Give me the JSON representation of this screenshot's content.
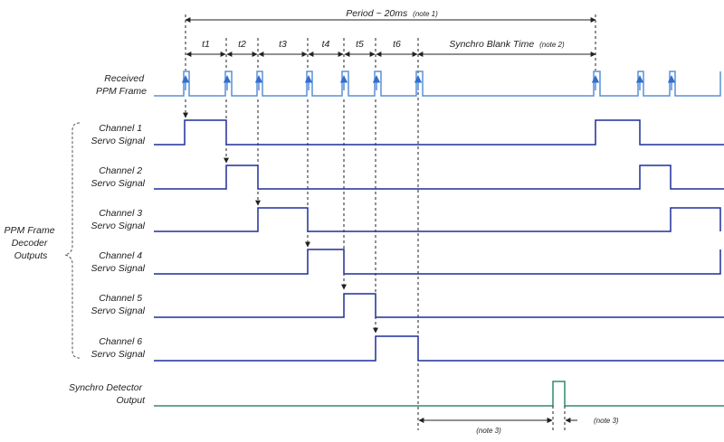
{
  "period": {
    "label": "Period ~ 20ms",
    "note": "(note 1)"
  },
  "intervals": [
    "t1",
    "t2",
    "t3",
    "t4",
    "t5",
    "t6"
  ],
  "blank": {
    "label": "Synchro Blank Time",
    "note": "(note 2)"
  },
  "ppm": {
    "line1": "Received",
    "line2": "PPM Frame"
  },
  "group": {
    "line1": "PPM Frame",
    "line2": "Decoder",
    "line3": "Outputs"
  },
  "channels": [
    {
      "line1": "Channel 1",
      "line2": "Servo Signal"
    },
    {
      "line1": "Channel 2",
      "line2": "Servo Signal"
    },
    {
      "line1": "Channel 3",
      "line2": "Servo Signal"
    },
    {
      "line1": "Channel 4",
      "line2": "Servo Signal"
    },
    {
      "line1": "Channel 5",
      "line2": "Servo Signal"
    },
    {
      "line1": "Channel 6",
      "line2": "Servo Signal"
    }
  ],
  "synchro": {
    "line1": "Synchro Detector",
    "line2": "Output"
  },
  "note3_left": "(note 3)",
  "note3_right": "(note 3)",
  "colors": {
    "ppm": "#5b8fd6",
    "servo": "#1f2f99",
    "synchro": "#2e8b6f",
    "arrow": "#222222"
  }
}
